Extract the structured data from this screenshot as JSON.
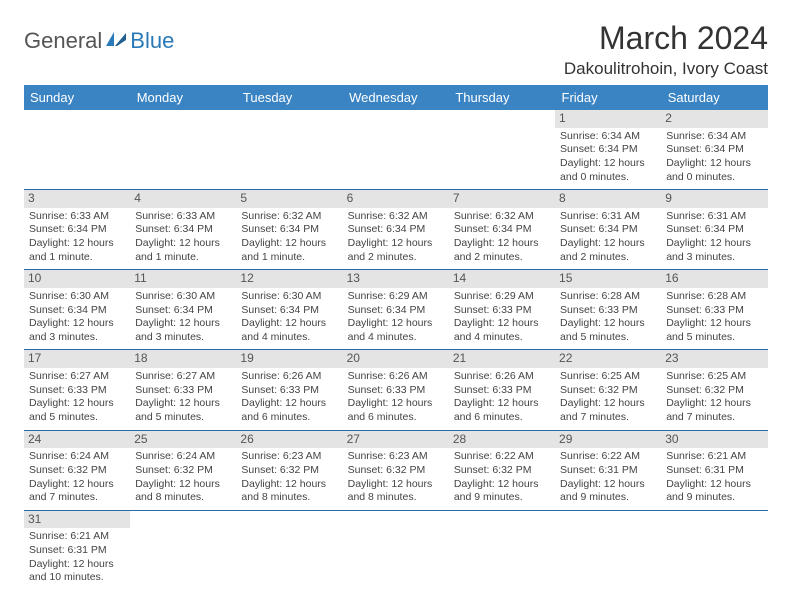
{
  "brand": {
    "general": "General",
    "blue": "Blue"
  },
  "title": "March 2024",
  "location": "Dakoulitrohoin, Ivory Coast",
  "colors": {
    "header_bg": "#3b84c4",
    "header_text": "#ffffff",
    "row_divider": "#2a6aa8",
    "daynum_bg": "#e4e4e4",
    "body_text": "#444444",
    "brand_blue": "#2a7ab8"
  },
  "day_headers": [
    "Sunday",
    "Monday",
    "Tuesday",
    "Wednesday",
    "Thursday",
    "Friday",
    "Saturday"
  ],
  "weeks": [
    [
      {
        "empty": true
      },
      {
        "empty": true
      },
      {
        "empty": true
      },
      {
        "empty": true
      },
      {
        "empty": true
      },
      {
        "day": "1",
        "sunrise": "Sunrise: 6:34 AM",
        "sunset": "Sunset: 6:34 PM",
        "daylight": "Daylight: 12 hours and 0 minutes."
      },
      {
        "day": "2",
        "sunrise": "Sunrise: 6:34 AM",
        "sunset": "Sunset: 6:34 PM",
        "daylight": "Daylight: 12 hours and 0 minutes."
      }
    ],
    [
      {
        "day": "3",
        "sunrise": "Sunrise: 6:33 AM",
        "sunset": "Sunset: 6:34 PM",
        "daylight": "Daylight: 12 hours and 1 minute."
      },
      {
        "day": "4",
        "sunrise": "Sunrise: 6:33 AM",
        "sunset": "Sunset: 6:34 PM",
        "daylight": "Daylight: 12 hours and 1 minute."
      },
      {
        "day": "5",
        "sunrise": "Sunrise: 6:32 AM",
        "sunset": "Sunset: 6:34 PM",
        "daylight": "Daylight: 12 hours and 1 minute."
      },
      {
        "day": "6",
        "sunrise": "Sunrise: 6:32 AM",
        "sunset": "Sunset: 6:34 PM",
        "daylight": "Daylight: 12 hours and 2 minutes."
      },
      {
        "day": "7",
        "sunrise": "Sunrise: 6:32 AM",
        "sunset": "Sunset: 6:34 PM",
        "daylight": "Daylight: 12 hours and 2 minutes."
      },
      {
        "day": "8",
        "sunrise": "Sunrise: 6:31 AM",
        "sunset": "Sunset: 6:34 PM",
        "daylight": "Daylight: 12 hours and 2 minutes."
      },
      {
        "day": "9",
        "sunrise": "Sunrise: 6:31 AM",
        "sunset": "Sunset: 6:34 PM",
        "daylight": "Daylight: 12 hours and 3 minutes."
      }
    ],
    [
      {
        "day": "10",
        "sunrise": "Sunrise: 6:30 AM",
        "sunset": "Sunset: 6:34 PM",
        "daylight": "Daylight: 12 hours and 3 minutes."
      },
      {
        "day": "11",
        "sunrise": "Sunrise: 6:30 AM",
        "sunset": "Sunset: 6:34 PM",
        "daylight": "Daylight: 12 hours and 3 minutes."
      },
      {
        "day": "12",
        "sunrise": "Sunrise: 6:30 AM",
        "sunset": "Sunset: 6:34 PM",
        "daylight": "Daylight: 12 hours and 4 minutes."
      },
      {
        "day": "13",
        "sunrise": "Sunrise: 6:29 AM",
        "sunset": "Sunset: 6:34 PM",
        "daylight": "Daylight: 12 hours and 4 minutes."
      },
      {
        "day": "14",
        "sunrise": "Sunrise: 6:29 AM",
        "sunset": "Sunset: 6:33 PM",
        "daylight": "Daylight: 12 hours and 4 minutes."
      },
      {
        "day": "15",
        "sunrise": "Sunrise: 6:28 AM",
        "sunset": "Sunset: 6:33 PM",
        "daylight": "Daylight: 12 hours and 5 minutes."
      },
      {
        "day": "16",
        "sunrise": "Sunrise: 6:28 AM",
        "sunset": "Sunset: 6:33 PM",
        "daylight": "Daylight: 12 hours and 5 minutes."
      }
    ],
    [
      {
        "day": "17",
        "sunrise": "Sunrise: 6:27 AM",
        "sunset": "Sunset: 6:33 PM",
        "daylight": "Daylight: 12 hours and 5 minutes."
      },
      {
        "day": "18",
        "sunrise": "Sunrise: 6:27 AM",
        "sunset": "Sunset: 6:33 PM",
        "daylight": "Daylight: 12 hours and 5 minutes."
      },
      {
        "day": "19",
        "sunrise": "Sunrise: 6:26 AM",
        "sunset": "Sunset: 6:33 PM",
        "daylight": "Daylight: 12 hours and 6 minutes."
      },
      {
        "day": "20",
        "sunrise": "Sunrise: 6:26 AM",
        "sunset": "Sunset: 6:33 PM",
        "daylight": "Daylight: 12 hours and 6 minutes."
      },
      {
        "day": "21",
        "sunrise": "Sunrise: 6:26 AM",
        "sunset": "Sunset: 6:33 PM",
        "daylight": "Daylight: 12 hours and 6 minutes."
      },
      {
        "day": "22",
        "sunrise": "Sunrise: 6:25 AM",
        "sunset": "Sunset: 6:32 PM",
        "daylight": "Daylight: 12 hours and 7 minutes."
      },
      {
        "day": "23",
        "sunrise": "Sunrise: 6:25 AM",
        "sunset": "Sunset: 6:32 PM",
        "daylight": "Daylight: 12 hours and 7 minutes."
      }
    ],
    [
      {
        "day": "24",
        "sunrise": "Sunrise: 6:24 AM",
        "sunset": "Sunset: 6:32 PM",
        "daylight": "Daylight: 12 hours and 7 minutes."
      },
      {
        "day": "25",
        "sunrise": "Sunrise: 6:24 AM",
        "sunset": "Sunset: 6:32 PM",
        "daylight": "Daylight: 12 hours and 8 minutes."
      },
      {
        "day": "26",
        "sunrise": "Sunrise: 6:23 AM",
        "sunset": "Sunset: 6:32 PM",
        "daylight": "Daylight: 12 hours and 8 minutes."
      },
      {
        "day": "27",
        "sunrise": "Sunrise: 6:23 AM",
        "sunset": "Sunset: 6:32 PM",
        "daylight": "Daylight: 12 hours and 8 minutes."
      },
      {
        "day": "28",
        "sunrise": "Sunrise: 6:22 AM",
        "sunset": "Sunset: 6:32 PM",
        "daylight": "Daylight: 12 hours and 9 minutes."
      },
      {
        "day": "29",
        "sunrise": "Sunrise: 6:22 AM",
        "sunset": "Sunset: 6:31 PM",
        "daylight": "Daylight: 12 hours and 9 minutes."
      },
      {
        "day": "30",
        "sunrise": "Sunrise: 6:21 AM",
        "sunset": "Sunset: 6:31 PM",
        "daylight": "Daylight: 12 hours and 9 minutes."
      }
    ],
    [
      {
        "day": "31",
        "sunrise": "Sunrise: 6:21 AM",
        "sunset": "Sunset: 6:31 PM",
        "daylight": "Daylight: 12 hours and 10 minutes."
      },
      {
        "empty": true
      },
      {
        "empty": true
      },
      {
        "empty": true
      },
      {
        "empty": true
      },
      {
        "empty": true
      },
      {
        "empty": true
      }
    ]
  ]
}
